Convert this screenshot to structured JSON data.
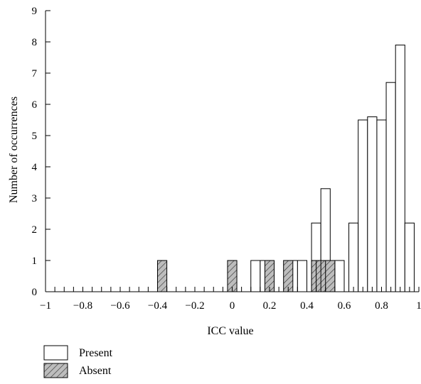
{
  "chart_data": {
    "type": "bar",
    "xlabel": "ICC value",
    "ylabel": "Number of occurrences",
    "xlim": [
      -1,
      1
    ],
    "ylim": [
      0,
      9
    ],
    "xticks": [
      "-1",
      "-0.8",
      "-0.6",
      "-0.4",
      "-0.2",
      "0",
      "0.2",
      "0.4",
      "0.6",
      "0.8",
      "1"
    ],
    "yticks": [
      "0",
      "1",
      "2",
      "3",
      "4",
      "5",
      "6",
      "7",
      "8",
      "9"
    ],
    "bin_width": 0.025,
    "legend_position": "bottom-left",
    "series": [
      {
        "name": "Present",
        "pattern": "plain",
        "fill": "#ffffff",
        "points": [
          {
            "x": 0.125,
            "y": 1
          },
          {
            "x": 0.175,
            "y": 1
          },
          {
            "x": 0.325,
            "y": 1
          },
          {
            "x": 0.375,
            "y": 1
          },
          {
            "x": 0.45,
            "y": 2.2
          },
          {
            "x": 0.5,
            "y": 3.3
          },
          {
            "x": 0.575,
            "y": 1
          },
          {
            "x": 0.65,
            "y": 2.2
          },
          {
            "x": 0.7,
            "y": 5.5
          },
          {
            "x": 0.75,
            "y": 5.6
          },
          {
            "x": 0.8,
            "y": 5.5
          },
          {
            "x": 0.85,
            "y": 6.7
          },
          {
            "x": 0.9,
            "y": 7.9
          },
          {
            "x": 0.95,
            "y": 2.2
          }
        ]
      },
      {
        "name": "Absent",
        "pattern": "hatched",
        "fill": "#bdbdbd",
        "points": [
          {
            "x": -0.375,
            "y": 1
          },
          {
            "x": 0.0,
            "y": 1
          },
          {
            "x": 0.2,
            "y": 1
          },
          {
            "x": 0.3,
            "y": 1
          },
          {
            "x": 0.45,
            "y": 1
          },
          {
            "x": 0.475,
            "y": 1
          },
          {
            "x": 0.5,
            "y": 1
          },
          {
            "x": 0.525,
            "y": 1
          }
        ]
      }
    ]
  }
}
